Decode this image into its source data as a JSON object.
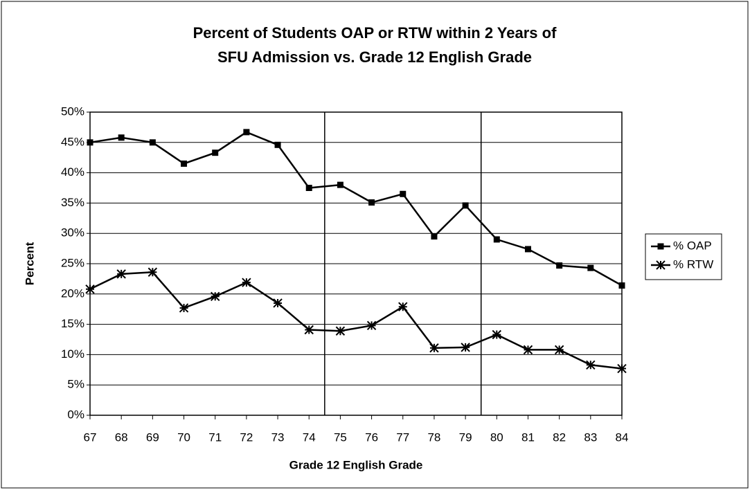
{
  "chart_data": {
    "type": "line",
    "title": [
      "Percent of Students OAP or RTW within 2 Years of",
      "SFU Admission vs. Grade 12 English Grade"
    ],
    "xlabel": "Grade 12 English Grade",
    "ylabel": "Percent",
    "x": [
      67,
      68,
      69,
      70,
      71,
      72,
      73,
      74,
      75,
      76,
      77,
      78,
      79,
      80,
      81,
      82,
      83,
      84
    ],
    "xlim": [
      67,
      84
    ],
    "xticks": [
      67,
      68,
      69,
      70,
      71,
      72,
      73,
      74,
      75,
      76,
      77,
      78,
      79,
      80,
      81,
      82,
      83,
      84
    ],
    "ylim": [
      0,
      50
    ],
    "yticks": [
      {
        "value": 0,
        "label": "0%"
      },
      {
        "value": 5,
        "label": "5%"
      },
      {
        "value": 10,
        "label": "10%"
      },
      {
        "value": 15,
        "label": "15%"
      },
      {
        "value": 20,
        "label": "20%"
      },
      {
        "value": 25,
        "label": "25%"
      },
      {
        "value": 30,
        "label": "30%"
      },
      {
        "value": 35,
        "label": "35%"
      },
      {
        "value": 40,
        "label": "40%"
      },
      {
        "value": 45,
        "label": "45%"
      },
      {
        "value": 50,
        "label": "50%"
      }
    ],
    "grid": true,
    "vlines": [
      74.5,
      79.5
    ],
    "legend": "right",
    "series": [
      {
        "name": "% OAP",
        "color": "#000000",
        "marker": "square",
        "values": [
          45,
          45.8,
          45,
          41.5,
          43.3,
          46.7,
          44.6,
          37.5,
          38,
          35.1,
          36.5,
          29.5,
          34.6,
          29,
          27.4,
          24.7,
          24.3,
          21.4
        ]
      },
      {
        "name": "% RTW",
        "color": "#000000",
        "marker": "star",
        "values": [
          20.8,
          23.3,
          23.6,
          17.7,
          19.6,
          21.9,
          18.5,
          14.1,
          13.9,
          14.8,
          17.9,
          11.1,
          11.2,
          13.3,
          10.8,
          10.8,
          8.3,
          7.7
        ]
      }
    ]
  }
}
